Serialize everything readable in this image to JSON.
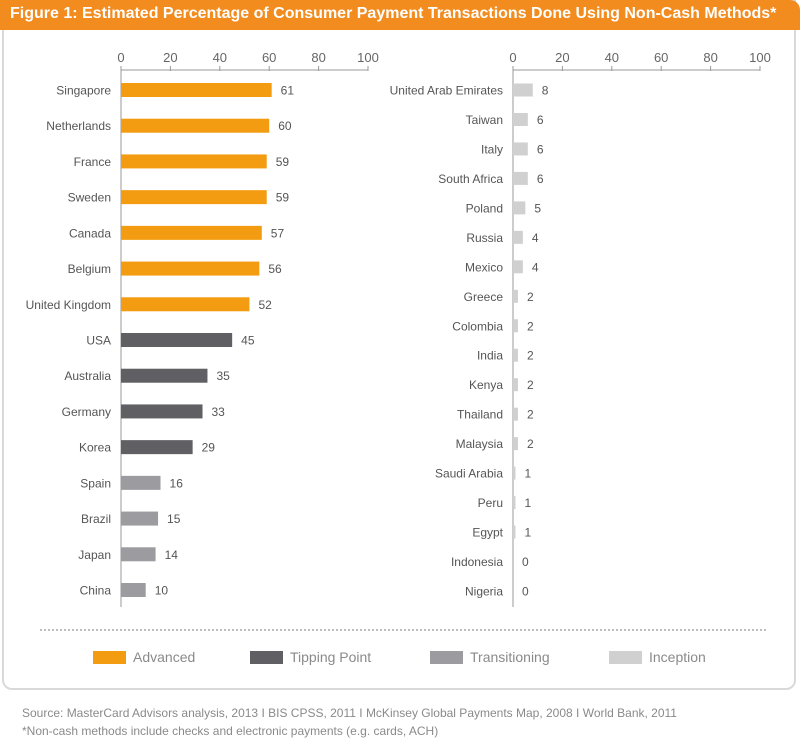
{
  "header": {
    "title": "Figure 1: Estimated Percentage of Consumer Payment Transactions Done Using Non-Cash Methods*"
  },
  "legend": [
    {
      "label": "Advanced",
      "color": "#f39c12"
    },
    {
      "label": "Tipping Point",
      "color": "#5f5f64"
    },
    {
      "label": "Transitioning",
      "color": "#9c9ca0"
    },
    {
      "label": "Inception",
      "color": "#d0d0d0"
    }
  ],
  "footer": {
    "source": "Source: MasterCard Advisors analysis, 2013  I  BIS CPSS, 2011  I  McKinsey Global Payments Map, 2008  I  World Bank, 2011",
    "footnote": "*Non-cash methods include checks and electronic payments (e.g. cards, ACH)"
  },
  "chart_data": [
    {
      "type": "bar",
      "orientation": "horizontal",
      "title": "Figure 1: Estimated Percentage of Consumer Payment Transactions Done Using Non-Cash Methods*",
      "xlim": [
        0,
        100
      ],
      "ticks": [
        0,
        20,
        40,
        60,
        80,
        100
      ],
      "categories": [
        "Singapore",
        "Netherlands",
        "France",
        "Sweden",
        "Canada",
        "Belgium",
        "United Kingdom",
        "USA",
        "Australia",
        "Germany",
        "Korea",
        "Spain",
        "Brazil",
        "Japan",
        "China"
      ],
      "values": [
        61,
        60,
        59,
        59,
        57,
        56,
        52,
        45,
        35,
        33,
        29,
        16,
        15,
        14,
        10
      ],
      "groups": [
        "Advanced",
        "Advanced",
        "Advanced",
        "Advanced",
        "Advanced",
        "Advanced",
        "Advanced",
        "Tipping Point",
        "Tipping Point",
        "Tipping Point",
        "Tipping Point",
        "Transitioning",
        "Transitioning",
        "Transitioning",
        "Transitioning"
      ]
    },
    {
      "type": "bar",
      "orientation": "horizontal",
      "xlim": [
        0,
        100
      ],
      "ticks": [
        0,
        20,
        40,
        60,
        80,
        100
      ],
      "categories": [
        "United Arab Emirates",
        "Taiwan",
        "Italy",
        "South Africa",
        "Poland",
        "Russia",
        "Mexico",
        "Greece",
        "Colombia",
        "India",
        "Kenya",
        "Thailand",
        "Malaysia",
        "Saudi Arabia",
        "Peru",
        "Egypt",
        "Indonesia",
        "Nigeria"
      ],
      "values": [
        8,
        6,
        6,
        6,
        5,
        4,
        4,
        2,
        2,
        2,
        2,
        2,
        2,
        1,
        1,
        1,
        0,
        0
      ],
      "groups": [
        "Inception",
        "Inception",
        "Inception",
        "Inception",
        "Inception",
        "Inception",
        "Inception",
        "Inception",
        "Inception",
        "Inception",
        "Inception",
        "Inception",
        "Inception",
        "Inception",
        "Inception",
        "Inception",
        "Inception",
        "Inception"
      ]
    }
  ]
}
